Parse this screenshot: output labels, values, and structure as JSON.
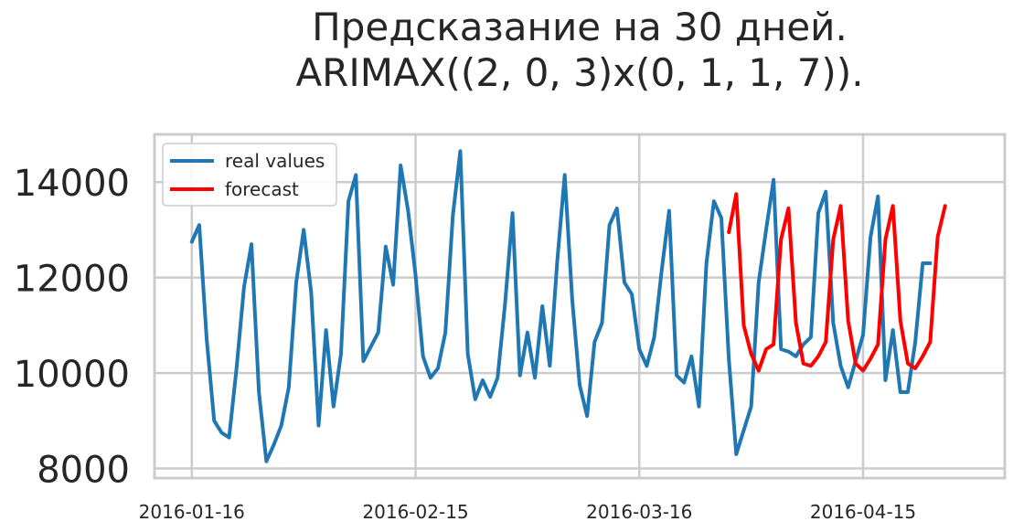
{
  "chart_data": {
    "type": "line",
    "title_line1": "Предсказание на 30 дней.",
    "title_line2": "ARIMAX((2, 0, 3)x(0, 1, 1, 7)).",
    "xlabel": "",
    "ylabel": "",
    "x_ticks": [
      "2016-01-16",
      "2016-02-15",
      "2016-03-16",
      "2016-04-15"
    ],
    "y_ticks": [
      "8000",
      "10000",
      "12000",
      "14000"
    ],
    "x_range": [
      "2016-01-11",
      "2016-05-04"
    ],
    "ylim": [
      7800,
      15000
    ],
    "grid": true,
    "legend_position": "top-left",
    "series": [
      {
        "name": "real values",
        "color": "#1f77b4",
        "start_date": "2016-01-16",
        "values": [
          12750,
          13100,
          10700,
          9000,
          8750,
          8650,
          10100,
          11800,
          12700,
          9600,
          8150,
          8500,
          8900,
          9700,
          11900,
          13000,
          11700,
          8900,
          10900,
          9300,
          10400,
          13600,
          14150,
          10250,
          10550,
          10850,
          12650,
          11850,
          14350,
          13400,
          12050,
          10350,
          9900,
          10100,
          10850,
          13300,
          14650,
          10400,
          9450,
          9850,
          9500,
          9900,
          11450,
          13350,
          9950,
          10850,
          9900,
          11400,
          10150,
          12350,
          14150,
          11550,
          9750,
          9100,
          10650,
          11050,
          13100,
          13450,
          11900,
          11650,
          10500,
          10150,
          10750,
          12150,
          13400,
          9950,
          9800,
          10350,
          9300,
          12300,
          13600,
          13250,
          10300,
          8300,
          8800,
          9300,
          11900,
          13000,
          14050,
          10500,
          10450,
          10350,
          10600,
          10750,
          13350,
          13800,
          11050,
          10150,
          9700,
          10250,
          10800,
          12850,
          13700,
          9850,
          10900,
          9600,
          9600,
          10650,
          12300,
          12300
        ]
      },
      {
        "name": "forecast",
        "color": "#ff0000",
        "start_date": "2016-03-28",
        "values": [
          12950,
          13750,
          11000,
          10400,
          10050,
          10500,
          10600,
          12800,
          13450,
          11050,
          10200,
          10150,
          10350,
          10650,
          12800,
          13500,
          11100,
          10200,
          10050,
          10300,
          10600,
          12800,
          13500,
          11100,
          10200,
          10100,
          10350,
          10650,
          12850,
          13500
        ]
      }
    ]
  }
}
